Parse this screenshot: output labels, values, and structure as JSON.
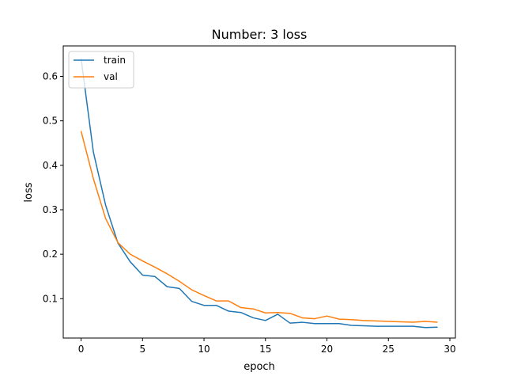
{
  "chart_data": {
    "type": "line",
    "title": "Number: 3 loss",
    "xlabel": "epoch",
    "ylabel": "loss",
    "xlim": [
      -1.45,
      30.45
    ],
    "ylim": [
      0.0115,
      0.6685
    ],
    "x_ticks": [
      0,
      5,
      10,
      15,
      20,
      25,
      30
    ],
    "y_ticks": [
      0.1,
      0.2,
      0.3,
      0.4,
      0.5,
      0.6
    ],
    "y_tick_labels": [
      "0.1",
      "0.2",
      "0.3",
      "0.4",
      "0.5",
      "0.6"
    ],
    "grid": false,
    "legend_position": "upper-left",
    "x": [
      0,
      1,
      2,
      3,
      4,
      5,
      6,
      7,
      8,
      9,
      10,
      11,
      12,
      13,
      14,
      15,
      16,
      17,
      18,
      19,
      20,
      21,
      22,
      23,
      24,
      25,
      26,
      27,
      28,
      29
    ],
    "series": [
      {
        "name": "train",
        "color": "#1f77b4",
        "values": [
          0.64,
          0.43,
          0.31,
          0.225,
          0.183,
          0.153,
          0.15,
          0.127,
          0.123,
          0.094,
          0.085,
          0.085,
          0.072,
          0.069,
          0.057,
          0.051,
          0.065,
          0.045,
          0.047,
          0.044,
          0.044,
          0.044,
          0.04,
          0.039,
          0.038,
          0.038,
          0.038,
          0.038,
          0.035,
          0.036
        ]
      },
      {
        "name": "val",
        "color": "#ff7f0e",
        "values": [
          0.477,
          0.37,
          0.28,
          0.226,
          0.2,
          0.185,
          0.171,
          0.156,
          0.139,
          0.12,
          0.107,
          0.095,
          0.095,
          0.08,
          0.077,
          0.068,
          0.069,
          0.067,
          0.057,
          0.055,
          0.061,
          0.054,
          0.053,
          0.051,
          0.05,
          0.049,
          0.048,
          0.047,
          0.049,
          0.047
        ]
      }
    ]
  }
}
